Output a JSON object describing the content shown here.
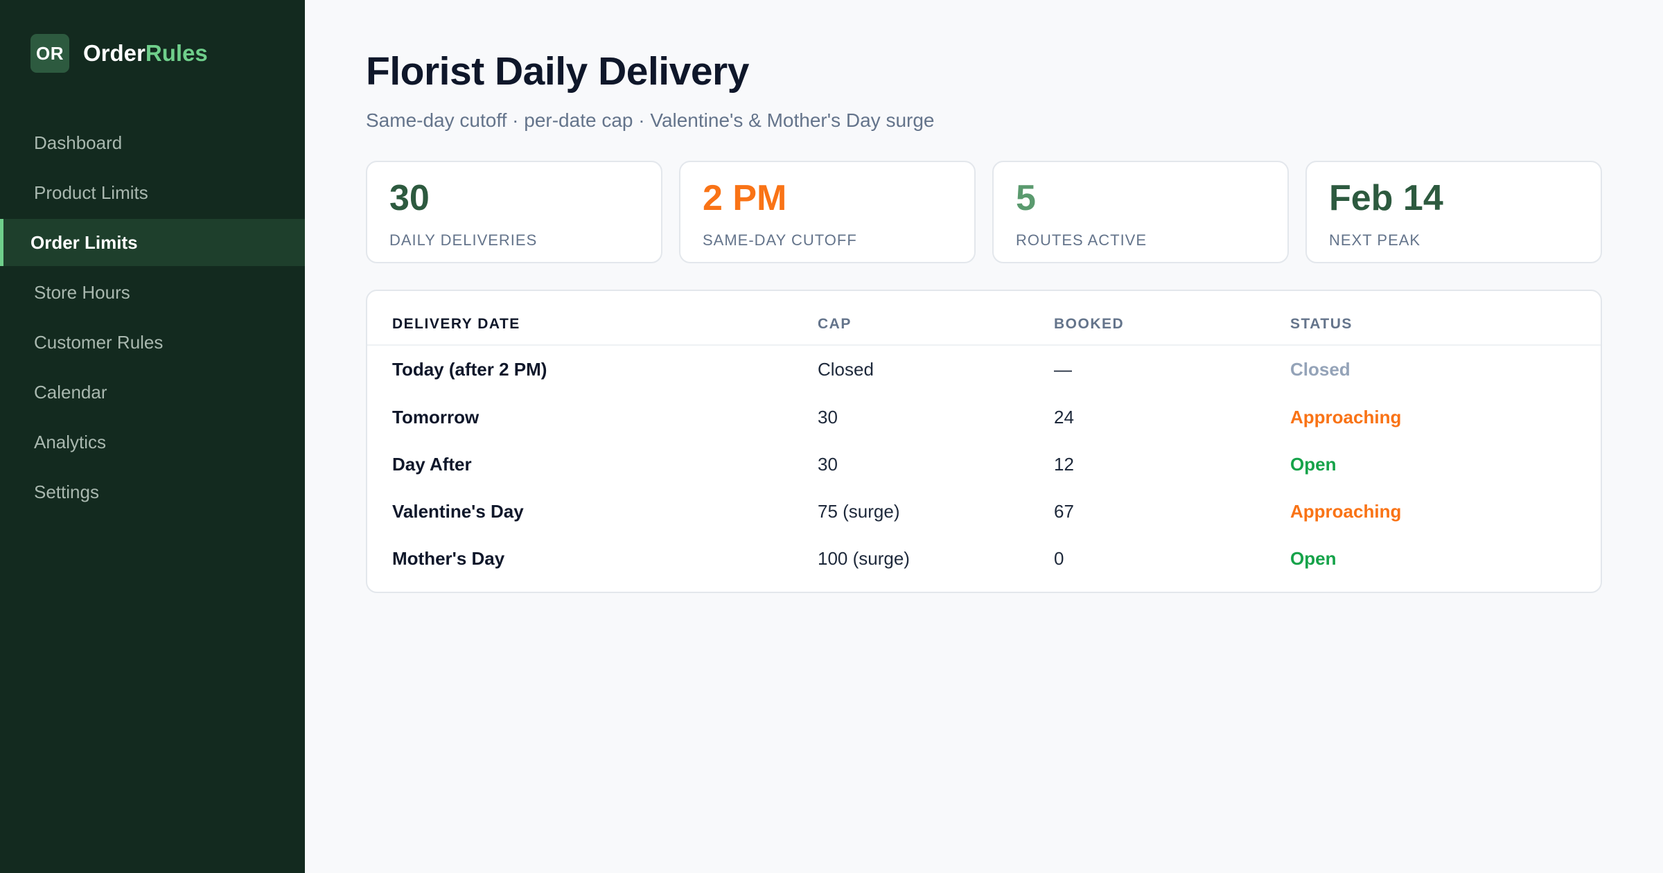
{
  "brand": {
    "badge": "OR",
    "name_part1": "Order",
    "name_part2": "Rules"
  },
  "sidebar": {
    "items": [
      {
        "label": "Dashboard"
      },
      {
        "label": "Product Limits"
      },
      {
        "label": "Order Limits"
      },
      {
        "label": "Store Hours"
      },
      {
        "label": "Customer Rules"
      },
      {
        "label": "Calendar"
      },
      {
        "label": "Analytics"
      },
      {
        "label": "Settings"
      }
    ],
    "active_item": "Order Limits"
  },
  "header": {
    "title": "Florist Daily Delivery",
    "subtitle": "Same-day cutoff · per-date cap · Valentine's & Mother's Day surge"
  },
  "stats": [
    {
      "value": "30",
      "label": "Daily Deliveries",
      "color": "#2d5a3f"
    },
    {
      "value": "2 PM",
      "label": "Same-Day Cutoff",
      "color": "#f97316"
    },
    {
      "value": "5",
      "label": "Routes Active",
      "color": "#5a9a6e"
    },
    {
      "value": "Feb 14",
      "label": "Next Peak",
      "color": "#2d5a3f"
    }
  ],
  "table": {
    "headers": [
      "Delivery Date",
      "Cap",
      "Booked",
      "Status"
    ],
    "rows": [
      {
        "date": "Today (after 2 PM)",
        "cap": "Closed",
        "booked": "—",
        "status": "Closed",
        "status_color": "#94a3b8"
      },
      {
        "date": "Tomorrow",
        "cap": "30",
        "booked": "24",
        "status": "Approaching",
        "status_color": "#f97316"
      },
      {
        "date": "Day After",
        "cap": "30",
        "booked": "12",
        "status": "Open",
        "status_color": "#16a34a"
      },
      {
        "date": "Valentine's Day",
        "cap": "75 (surge)",
        "booked": "67",
        "status": "Approaching",
        "status_color": "#f97316"
      },
      {
        "date": "Mother's Day",
        "cap": "100 (surge)",
        "booked": "0",
        "status": "Open",
        "status_color": "#16a34a"
      }
    ]
  }
}
